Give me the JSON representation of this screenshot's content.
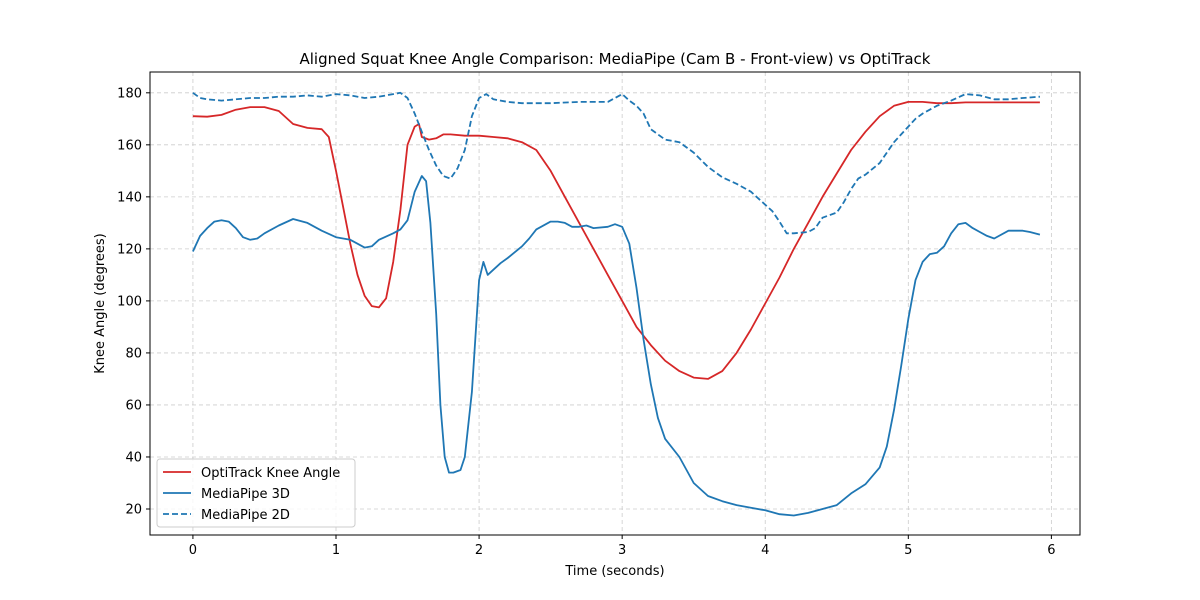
{
  "chart_data": {
    "type": "line",
    "title": "Aligned Squat Knee Angle Comparison: MediaPipe (Cam B - Front-view) vs OptiTrack",
    "xlabel": "Time (seconds)",
    "ylabel": "Knee Angle (degrees)",
    "xlim": [
      -0.3,
      6.2
    ],
    "ylim": [
      10,
      188
    ],
    "xticks": [
      0,
      1,
      2,
      3,
      4,
      5,
      6
    ],
    "yticks": [
      20,
      40,
      60,
      80,
      100,
      120,
      140,
      160,
      180
    ],
    "grid": true,
    "legend_position": "bottom-left",
    "series": [
      {
        "name": "OptiTrack Knee Angle",
        "color": "#d62728",
        "dash": "solid",
        "points": [
          [
            0,
            171
          ],
          [
            0.1,
            170.8
          ],
          [
            0.2,
            171.5
          ],
          [
            0.3,
            173.5
          ],
          [
            0.4,
            174.5
          ],
          [
            0.5,
            174.5
          ],
          [
            0.6,
            173
          ],
          [
            0.7,
            168
          ],
          [
            0.8,
            166.5
          ],
          [
            0.9,
            166
          ],
          [
            0.95,
            163
          ],
          [
            1.0,
            150
          ],
          [
            1.05,
            136
          ],
          [
            1.1,
            122
          ],
          [
            1.15,
            110
          ],
          [
            1.2,
            102
          ],
          [
            1.25,
            98
          ],
          [
            1.3,
            97.5
          ],
          [
            1.35,
            101
          ],
          [
            1.4,
            115
          ],
          [
            1.45,
            135
          ],
          [
            1.5,
            160
          ],
          [
            1.55,
            167
          ],
          [
            1.58,
            168
          ],
          [
            1.6,
            163
          ],
          [
            1.65,
            162
          ],
          [
            1.7,
            162.5
          ],
          [
            1.75,
            164
          ],
          [
            1.8,
            164
          ],
          [
            1.9,
            163.5
          ],
          [
            2.0,
            163.5
          ],
          [
            2.1,
            163
          ],
          [
            2.2,
            162.5
          ],
          [
            2.3,
            161
          ],
          [
            2.4,
            158
          ],
          [
            2.5,
            150
          ],
          [
            2.6,
            140
          ],
          [
            2.7,
            130
          ],
          [
            2.8,
            120
          ],
          [
            2.9,
            110
          ],
          [
            3.0,
            100
          ],
          [
            3.1,
            90
          ],
          [
            3.2,
            83
          ],
          [
            3.3,
            77
          ],
          [
            3.4,
            73
          ],
          [
            3.5,
            70.5
          ],
          [
            3.6,
            70
          ],
          [
            3.7,
            73
          ],
          [
            3.8,
            80
          ],
          [
            3.9,
            89
          ],
          [
            4.0,
            99
          ],
          [
            4.1,
            109
          ],
          [
            4.2,
            120
          ],
          [
            4.3,
            130
          ],
          [
            4.4,
            140
          ],
          [
            4.5,
            149
          ],
          [
            4.6,
            158
          ],
          [
            4.7,
            165
          ],
          [
            4.8,
            171
          ],
          [
            4.9,
            175
          ],
          [
            5.0,
            176.5
          ],
          [
            5.1,
            176.5
          ],
          [
            5.2,
            176
          ],
          [
            5.3,
            176
          ],
          [
            5.4,
            176.3
          ],
          [
            5.6,
            176.3
          ],
          [
            5.8,
            176.3
          ],
          [
            5.92,
            176.3
          ]
        ]
      },
      {
        "name": "MediaPipe 3D",
        "color": "#1f77b4",
        "dash": "solid",
        "points": [
          [
            0,
            119
          ],
          [
            0.05,
            125
          ],
          [
            0.1,
            128
          ],
          [
            0.15,
            130.5
          ],
          [
            0.2,
            131
          ],
          [
            0.25,
            130.5
          ],
          [
            0.3,
            128
          ],
          [
            0.35,
            124.5
          ],
          [
            0.4,
            123.5
          ],
          [
            0.45,
            124
          ],
          [
            0.5,
            126
          ],
          [
            0.6,
            129
          ],
          [
            0.7,
            131.5
          ],
          [
            0.8,
            130
          ],
          [
            0.9,
            127
          ],
          [
            1.0,
            124.5
          ],
          [
            1.1,
            123.5
          ],
          [
            1.15,
            122
          ],
          [
            1.2,
            120.5
          ],
          [
            1.25,
            121
          ],
          [
            1.3,
            123.5
          ],
          [
            1.4,
            126
          ],
          [
            1.45,
            127.5
          ],
          [
            1.5,
            131
          ],
          [
            1.55,
            142
          ],
          [
            1.6,
            148
          ],
          [
            1.63,
            146
          ],
          [
            1.66,
            130
          ],
          [
            1.7,
            95
          ],
          [
            1.73,
            60
          ],
          [
            1.76,
            40
          ],
          [
            1.79,
            34
          ],
          [
            1.82,
            34
          ],
          [
            1.87,
            35
          ],
          [
            1.9,
            40
          ],
          [
            1.95,
            65
          ],
          [
            2.0,
            108
          ],
          [
            2.03,
            115
          ],
          [
            2.06,
            110
          ],
          [
            2.1,
            112
          ],
          [
            2.15,
            114.5
          ],
          [
            2.2,
            116.5
          ],
          [
            2.3,
            121
          ],
          [
            2.35,
            124
          ],
          [
            2.4,
            127.5
          ],
          [
            2.5,
            130.5
          ],
          [
            2.55,
            130.5
          ],
          [
            2.6,
            130
          ],
          [
            2.65,
            128.5
          ],
          [
            2.7,
            128.5
          ],
          [
            2.75,
            129
          ],
          [
            2.8,
            128
          ],
          [
            2.9,
            128.5
          ],
          [
            2.95,
            129.5
          ],
          [
            3.0,
            128.5
          ],
          [
            3.05,
            122
          ],
          [
            3.1,
            105
          ],
          [
            3.15,
            85
          ],
          [
            3.2,
            68
          ],
          [
            3.25,
            55
          ],
          [
            3.3,
            47
          ],
          [
            3.4,
            40
          ],
          [
            3.5,
            30
          ],
          [
            3.6,
            25
          ],
          [
            3.7,
            23
          ],
          [
            3.8,
            21.5
          ],
          [
            3.9,
            20.5
          ],
          [
            4.0,
            19.5
          ],
          [
            4.1,
            18
          ],
          [
            4.2,
            17.5
          ],
          [
            4.3,
            18.5
          ],
          [
            4.4,
            20
          ],
          [
            4.5,
            21.5
          ],
          [
            4.6,
            26
          ],
          [
            4.7,
            29.5
          ],
          [
            4.8,
            36
          ],
          [
            4.85,
            44
          ],
          [
            4.9,
            58
          ],
          [
            4.95,
            75
          ],
          [
            5.0,
            93
          ],
          [
            5.05,
            108
          ],
          [
            5.1,
            115
          ],
          [
            5.15,
            118
          ],
          [
            5.2,
            118.5
          ],
          [
            5.25,
            121
          ],
          [
            5.3,
            126
          ],
          [
            5.35,
            129.5
          ],
          [
            5.4,
            130
          ],
          [
            5.45,
            128
          ],
          [
            5.5,
            126.5
          ],
          [
            5.55,
            125
          ],
          [
            5.6,
            124
          ],
          [
            5.7,
            127
          ],
          [
            5.8,
            127
          ],
          [
            5.85,
            126.5
          ],
          [
            5.92,
            125.5
          ]
        ]
      },
      {
        "name": "MediaPipe 2D",
        "color": "#1f77b4",
        "dash": "dashed",
        "points": [
          [
            0,
            180
          ],
          [
            0.05,
            178
          ],
          [
            0.1,
            177.5
          ],
          [
            0.2,
            177
          ],
          [
            0.3,
            177.5
          ],
          [
            0.4,
            178
          ],
          [
            0.5,
            178
          ],
          [
            0.6,
            178.5
          ],
          [
            0.7,
            178.5
          ],
          [
            0.8,
            179
          ],
          [
            0.9,
            178.5
          ],
          [
            1.0,
            179.5
          ],
          [
            1.1,
            179
          ],
          [
            1.2,
            178
          ],
          [
            1.3,
            178.5
          ],
          [
            1.4,
            179.5
          ],
          [
            1.45,
            180
          ],
          [
            1.5,
            178
          ],
          [
            1.55,
            172
          ],
          [
            1.6,
            165
          ],
          [
            1.65,
            158
          ],
          [
            1.7,
            152
          ],
          [
            1.75,
            148
          ],
          [
            1.8,
            147
          ],
          [
            1.85,
            151
          ],
          [
            1.9,
            158
          ],
          [
            1.95,
            171
          ],
          [
            2.0,
            178
          ],
          [
            2.05,
            179.5
          ],
          [
            2.1,
            177.5
          ],
          [
            2.2,
            176.5
          ],
          [
            2.3,
            176
          ],
          [
            2.5,
            176
          ],
          [
            2.7,
            176.5
          ],
          [
            2.9,
            176.5
          ],
          [
            2.95,
            178
          ],
          [
            3.0,
            179.5
          ],
          [
            3.05,
            177
          ],
          [
            3.1,
            175
          ],
          [
            3.15,
            172
          ],
          [
            3.2,
            166
          ],
          [
            3.3,
            162
          ],
          [
            3.4,
            161
          ],
          [
            3.5,
            157
          ],
          [
            3.6,
            151.5
          ],
          [
            3.7,
            147.5
          ],
          [
            3.8,
            145
          ],
          [
            3.9,
            142
          ],
          [
            4.0,
            137
          ],
          [
            4.05,
            134.5
          ],
          [
            4.1,
            130.5
          ],
          [
            4.15,
            126
          ],
          [
            4.2,
            126
          ],
          [
            4.3,
            126.5
          ],
          [
            4.35,
            128
          ],
          [
            4.4,
            132
          ],
          [
            4.5,
            134
          ],
          [
            4.55,
            138
          ],
          [
            4.6,
            143
          ],
          [
            4.65,
            147
          ],
          [
            4.7,
            148.5
          ],
          [
            4.8,
            153
          ],
          [
            4.9,
            161
          ],
          [
            5.0,
            167
          ],
          [
            5.05,
            170
          ],
          [
            5.1,
            172
          ],
          [
            5.2,
            175
          ],
          [
            5.3,
            177
          ],
          [
            5.4,
            179.5
          ],
          [
            5.5,
            179
          ],
          [
            5.6,
            177.5
          ],
          [
            5.7,
            177.5
          ],
          [
            5.8,
            178
          ],
          [
            5.92,
            178.5
          ]
        ]
      }
    ]
  }
}
